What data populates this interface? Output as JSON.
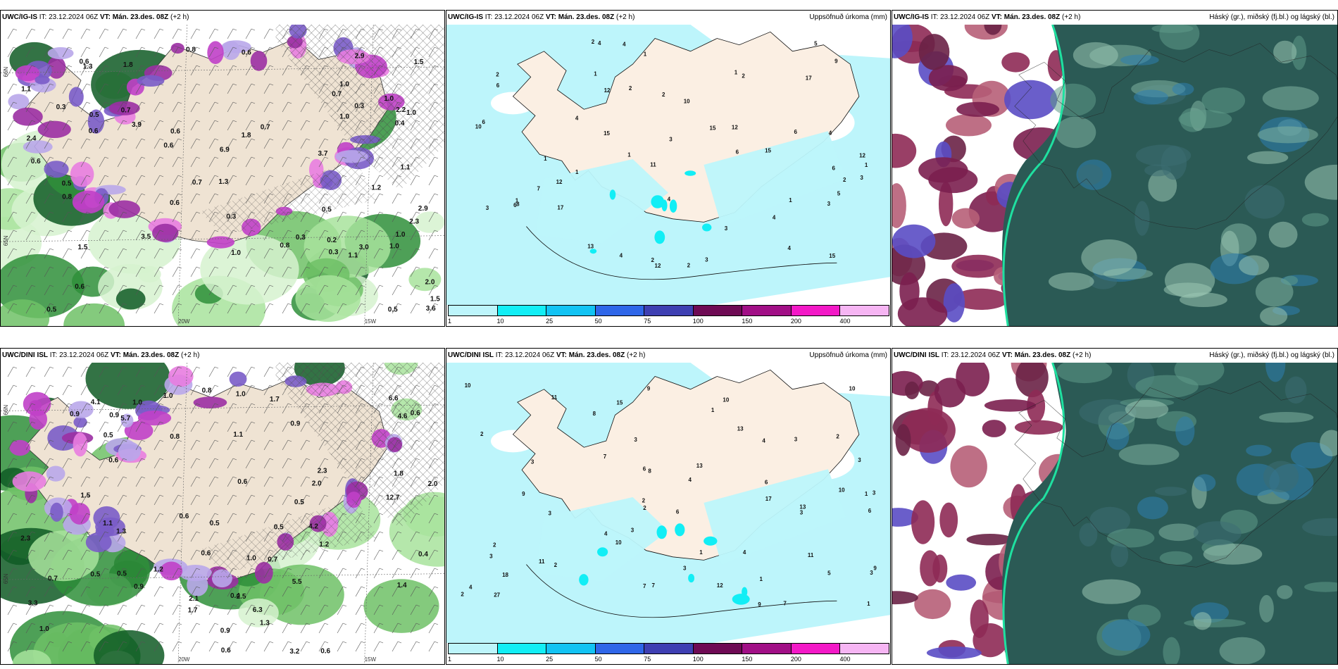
{
  "rows": [
    {
      "model": "UWC/IG-IS",
      "panels": [
        {
          "it_label": "IT:",
          "it": "23.12.2024 06Z",
          "vt_label": "VT:",
          "vt": "Mán. 23.des. 08Z",
          "lead": "(+2 h)",
          "right_title": ""
        },
        {
          "it_label": "IT:",
          "it": "23.12.2024 06Z",
          "vt_label": "VT:",
          "vt": "Mán. 23.des. 08Z",
          "lead": "(+2 h)",
          "right_title": "Uppsöfnuð úrkoma (mm)"
        },
        {
          "it_label": "IT:",
          "it": "23.12.2024 06Z",
          "vt_label": "VT:",
          "vt": "Mán. 23.des. 08Z",
          "lead": "(+2 h)",
          "right_title": "Háský (gr.), miðský (fj.bl.) og lágský (bl.)"
        }
      ],
      "p1_values": [
        "0.3",
        "2.0",
        "3.7",
        "1.8",
        "1.8",
        "1.5",
        "1.5",
        "1.2",
        "0.6",
        "0.7",
        "0.5",
        "0.5",
        "0.7",
        "0.6",
        "0.3",
        "0.3",
        "1.1",
        "0.3",
        "0.2",
        "0.6",
        "0.6",
        "0.5",
        "0.6",
        "0.7",
        "0.7",
        "0.4",
        "0.5",
        "1.3",
        "0.8",
        "3.0",
        "2.3",
        "3.5",
        "1.1",
        "3.9",
        "2.9",
        "2.9",
        "6.9",
        "3.6",
        "2.4",
        "2.2",
        "1.5",
        "1.0",
        "1.0",
        "0.8",
        "1.0",
        "0.5",
        "1.0",
        "0.6",
        "1.1",
        "1.0",
        "1.0",
        "0.8",
        "0.6",
        "0.3",
        "1.0",
        "1.3",
        "0.6"
      ],
      "p1_axes": {
        "lat": "66N",
        "lat2": "65N",
        "lon1": "20W",
        "lon2": "15W"
      },
      "p2_values": [
        "6",
        "5",
        "2",
        "4",
        "4",
        "4",
        "2",
        "3",
        "1",
        "1",
        "12",
        "4",
        "3",
        "3",
        "6",
        "12",
        "1",
        "2",
        "1",
        "2",
        "12",
        "10",
        "7",
        "17",
        "13",
        "15",
        "17",
        "15",
        "6",
        "2",
        "2",
        "1",
        "4",
        "3",
        "11",
        "9",
        "2",
        "4",
        "6",
        "5",
        "10",
        "12",
        "15",
        "12",
        "15",
        "4",
        "6",
        "6",
        "8",
        "3",
        "4",
        "1",
        "2",
        "1",
        "1",
        "1",
        "3"
      ],
      "colorbar": [
        {
          "color": "#bdf5fb",
          "tick": "1"
        },
        {
          "color": "#12eef5",
          "tick": "10"
        },
        {
          "color": "#12c3f3",
          "tick": "25"
        },
        {
          "color": "#2f66e8",
          "tick": "50"
        },
        {
          "color": "#3e3fb2",
          "tick": "75"
        },
        {
          "color": "#6e0a54",
          "tick": "100"
        },
        {
          "color": "#a10f86",
          "tick": "150"
        },
        {
          "color": "#f319c7",
          "tick": "200"
        },
        {
          "color": "#f6b5f3",
          "tick": "400"
        }
      ]
    },
    {
      "model": "UWC/DINI ISL",
      "panels": [
        {
          "it_label": "IT:",
          "it": "23.12.2024 06Z",
          "vt_label": "VT:",
          "vt": "Mán. 23.des. 08Z",
          "lead": "(+2 h)",
          "right_title": ""
        },
        {
          "it_label": "IT:",
          "it": "23.12.2024 06Z",
          "vt_label": "VT:",
          "vt": "Mán. 23.des. 08Z",
          "lead": "(+2 h)",
          "right_title": "Uppsöfnuð úrkoma (mm)"
        },
        {
          "it_label": "IT:",
          "it": "23.12.2024 06Z",
          "vt_label": "VT:",
          "vt": "Mán. 23.des. 08Z",
          "lead": "(+2 h)",
          "right_title": "Háský (gr.), miðský (fj.bl.) og lágský (bl.)"
        }
      ],
      "p1_values": [
        "0.5",
        "0.4",
        "1.4",
        "4.2",
        "2.1",
        "2.0",
        "1.2",
        "0.7",
        "1.0",
        "0.6",
        "0.9",
        "0.6",
        "0.6",
        "0.8",
        "0.9",
        "1.5",
        "0.5",
        "1.0",
        "1.1",
        "0.4",
        "12.7",
        "3.2",
        "1.3",
        "1.8",
        "6.6",
        "4.1",
        "4.6",
        "6.3",
        "5.5",
        "5.7",
        "2.3",
        "3.3",
        "0.5",
        "1.0",
        "0.7",
        "0.9",
        "0.6",
        "1.2",
        "2.5",
        "1.0",
        "0.6",
        "0.6",
        "0.9",
        "0.6",
        "0.8",
        "1.7",
        "2.0",
        "2.3",
        "0.5",
        "1.0",
        "0.9",
        "0.5",
        "1.1",
        "1.3",
        "0.5",
        "1.7"
      ],
      "p1_axes": {
        "lat": "66N",
        "lat2": "65N",
        "lon1": "20W",
        "lon2": "15W"
      },
      "p2_values": [
        "6",
        "6",
        "3",
        "3",
        "3",
        "4",
        "2",
        "1",
        "3",
        "6",
        "13",
        "3",
        "4",
        "2",
        "2",
        "1",
        "1",
        "2",
        "1",
        "3",
        "3",
        "7",
        "4",
        "3",
        "8",
        "4",
        "10",
        "7",
        "17",
        "7",
        "9",
        "10",
        "12",
        "18",
        "3",
        "2",
        "10",
        "13",
        "10",
        "15",
        "9",
        "27",
        "13",
        "11",
        "9",
        "11",
        "8",
        "10",
        "11",
        "6",
        "7",
        "9",
        "5",
        "4",
        "3",
        "3",
        "2",
        "1",
        "2"
      ],
      "colorbar": [
        {
          "color": "#bdf5fb",
          "tick": "1"
        },
        {
          "color": "#12eef5",
          "tick": "10"
        },
        {
          "color": "#12c3f3",
          "tick": "25"
        },
        {
          "color": "#2f66e8",
          "tick": "50"
        },
        {
          "color": "#3e3fb2",
          "tick": "75"
        },
        {
          "color": "#6e0a54",
          "tick": "100"
        },
        {
          "color": "#a10f86",
          "tick": "150"
        },
        {
          "color": "#f319c7",
          "tick": "200"
        },
        {
          "color": "#f6b5f3",
          "tick": "400"
        }
      ]
    }
  ]
}
